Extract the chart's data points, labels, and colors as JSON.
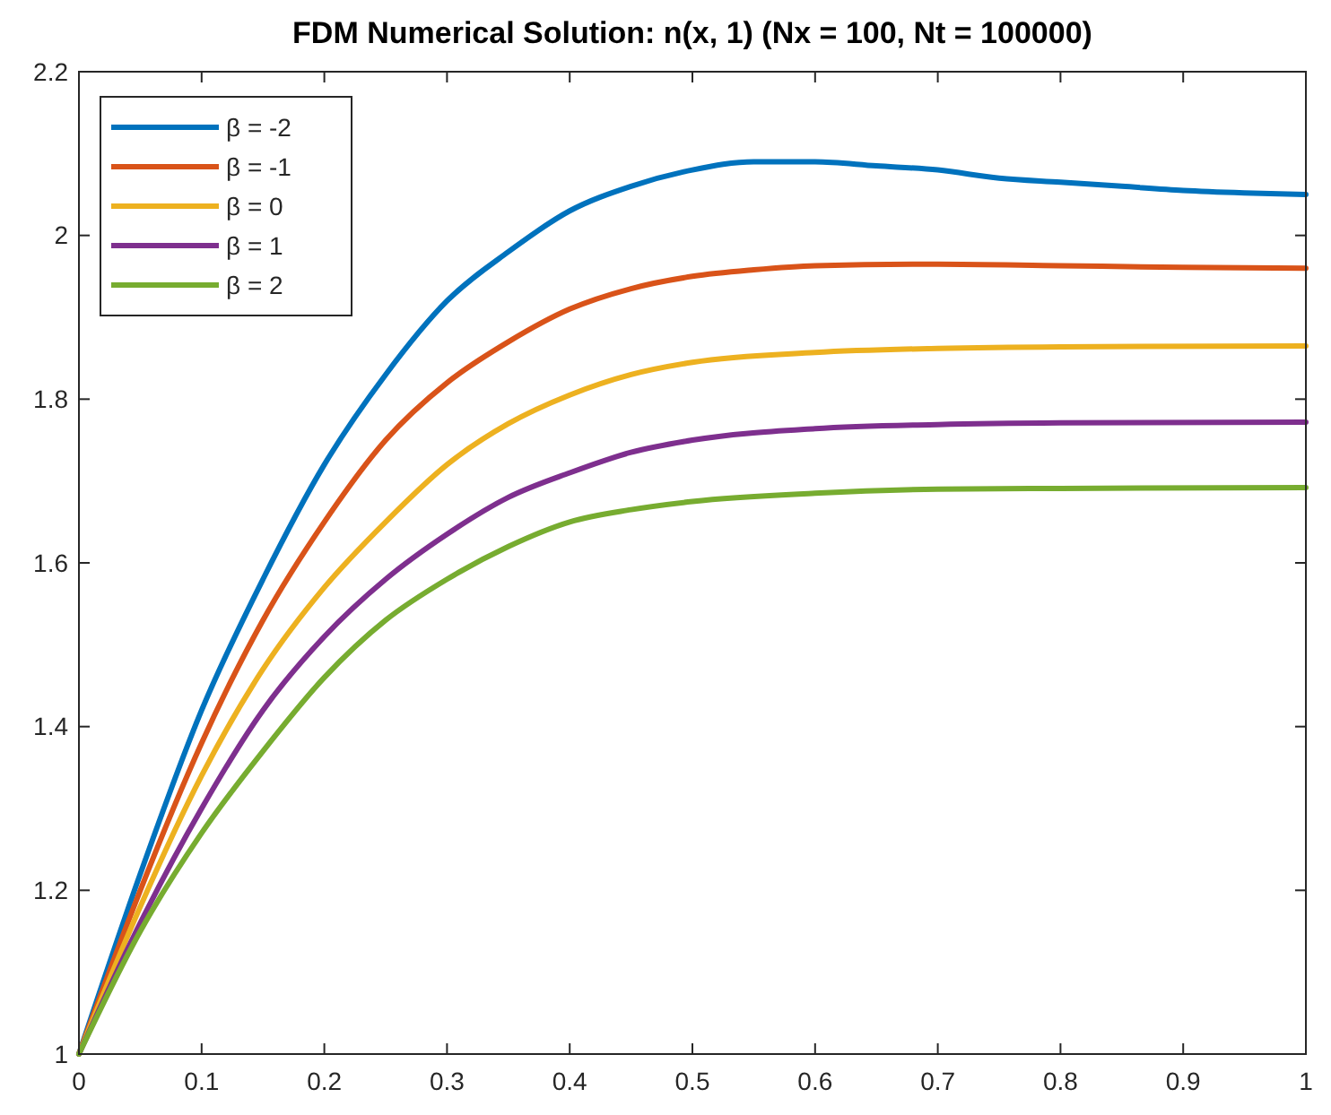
{
  "chart_data": {
    "type": "line",
    "title": "FDM Numerical Solution: n(x, 1) (Nx = 100, Nt = 100000)",
    "xlim": [
      0,
      1
    ],
    "xticks": [
      0,
      0.1,
      0.2,
      0.3,
      0.4,
      0.5,
      0.6,
      0.7,
      0.8,
      0.9,
      1
    ],
    "ylim": [
      1,
      2.2
    ],
    "yticks": [
      1,
      1.2,
      1.4,
      1.6,
      1.8,
      2,
      2.2
    ],
    "grid": false,
    "legend": "top left",
    "marker": "none",
    "line_style": "solid",
    "series": [
      {
        "name": "β = -2",
        "color": "#0072bd",
        "x": [
          0,
          0.05,
          0.1,
          0.15,
          0.2,
          0.25,
          0.3,
          0.35,
          0.4,
          0.45,
          0.5,
          0.55,
          0.6,
          0.65,
          0.7,
          0.75,
          0.8,
          0.85,
          0.9,
          0.95,
          1
        ],
        "values": [
          1,
          1.22,
          1.42,
          1.58,
          1.72,
          1.83,
          1.92,
          1.98,
          2.03,
          2.06,
          2.08,
          2.09,
          2.09,
          2.085,
          2.08,
          2.07,
          2.065,
          2.06,
          2.055,
          2.052,
          2.05
        ]
      },
      {
        "name": "β = -1",
        "color": "#d95319",
        "x": [
          0,
          0.05,
          0.1,
          0.15,
          0.2,
          0.25,
          0.3,
          0.35,
          0.4,
          0.45,
          0.5,
          0.55,
          0.6,
          0.7,
          0.8,
          0.9,
          1
        ],
        "values": [
          1,
          1.2,
          1.38,
          1.53,
          1.65,
          1.75,
          1.82,
          1.87,
          1.91,
          1.935,
          1.95,
          1.958,
          1.963,
          1.965,
          1.963,
          1.961,
          1.96
        ]
      },
      {
        "name": "β = 0",
        "color": "#edb120",
        "x": [
          0,
          0.05,
          0.1,
          0.15,
          0.2,
          0.25,
          0.3,
          0.35,
          0.4,
          0.45,
          0.5,
          0.6,
          0.7,
          0.8,
          1
        ],
        "values": [
          1,
          1.18,
          1.34,
          1.47,
          1.57,
          1.65,
          1.72,
          1.77,
          1.805,
          1.83,
          1.845,
          1.857,
          1.862,
          1.864,
          1.865
        ]
      },
      {
        "name": "β = 1",
        "color": "#7e2f8e",
        "x": [
          0,
          0.05,
          0.1,
          0.15,
          0.2,
          0.25,
          0.3,
          0.35,
          0.4,
          0.45,
          0.5,
          0.6,
          0.7,
          0.8,
          1
        ],
        "values": [
          1,
          1.16,
          1.3,
          1.42,
          1.51,
          1.58,
          1.635,
          1.68,
          1.71,
          1.735,
          1.75,
          1.764,
          1.769,
          1.771,
          1.772
        ]
      },
      {
        "name": "β = 2",
        "color": "#77ac30",
        "x": [
          0,
          0.05,
          0.1,
          0.15,
          0.2,
          0.25,
          0.3,
          0.35,
          0.4,
          0.45,
          0.5,
          0.6,
          0.7,
          0.8,
          1
        ],
        "values": [
          1,
          1.15,
          1.27,
          1.37,
          1.46,
          1.53,
          1.58,
          1.62,
          1.65,
          1.665,
          1.675,
          1.685,
          1.69,
          1.691,
          1.692
        ]
      }
    ]
  }
}
